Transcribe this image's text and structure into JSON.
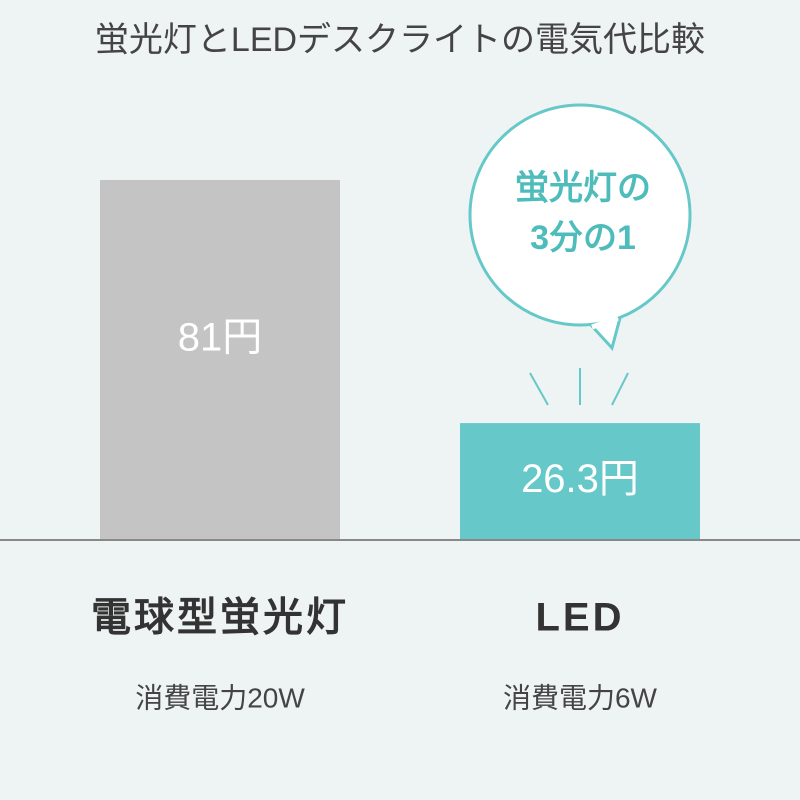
{
  "chart_data": {
    "type": "bar",
    "title": "蛍光灯とLEDデスクライトの電気代比較",
    "categories": [
      "電球型蛍光灯",
      "LED"
    ],
    "category_notes": [
      "消費電力20W",
      "消費電力6W"
    ],
    "values": [
      81,
      26.3
    ],
    "value_labels": [
      "81円",
      "26.3円"
    ],
    "colors": [
      "#c4c4c4",
      "#66c8c8"
    ],
    "annotation": [
      "蛍光灯の",
      "3分の1"
    ]
  }
}
